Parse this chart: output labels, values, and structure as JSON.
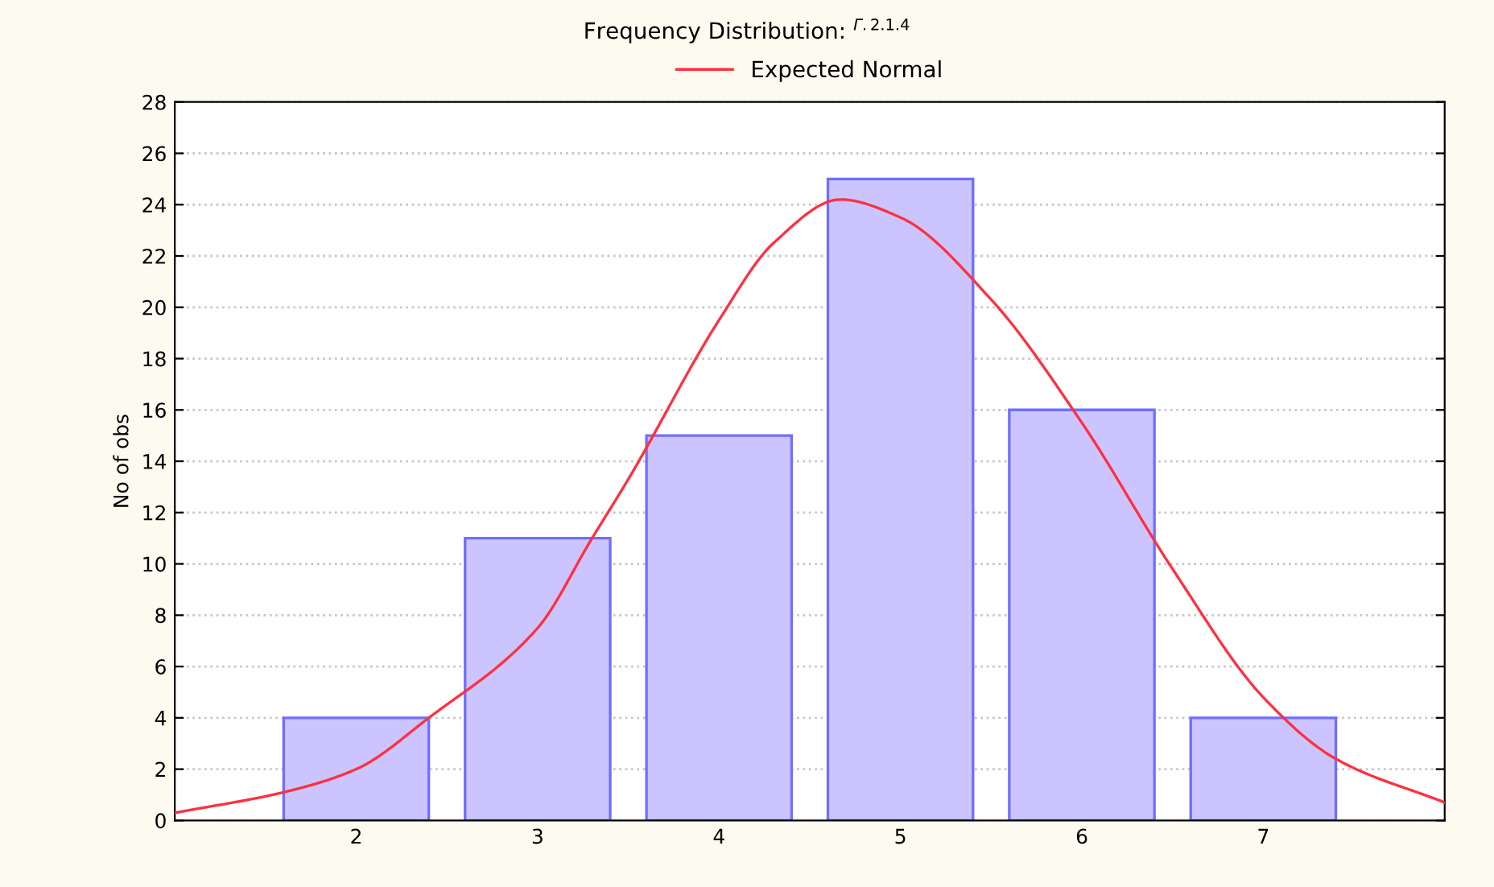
{
  "chart_data": {
    "type": "bar",
    "title": "Frequency Distribution: $^{Г.2.1.4}$",
    "ylabel": "No of obs",
    "xlim": [
      1,
      8
    ],
    "xticks": [
      2,
      3,
      4,
      5,
      6,
      7
    ],
    "ylim": [
      0,
      28
    ],
    "yticks": [
      0,
      2,
      4,
      6,
      8,
      10,
      12,
      14,
      16,
      18,
      20,
      22,
      24,
      26,
      28
    ],
    "grid": "y",
    "legend": "top",
    "series": [
      {
        "color": "#ccc4ff",
        "x": [
          2,
          3,
          4,
          5,
          6,
          7
        ],
        "values": [
          4,
          11,
          15,
          25,
          16,
          4
        ]
      },
      {
        "type": "line",
        "name": "Expected Normal",
        "color": "#ff3040",
        "x": [
          1.0,
          1.6,
          2.0,
          2.4,
          3.0,
          3.3,
          3.5,
          4.0,
          4.3,
          4.67,
          5.0,
          5.5,
          6.0,
          6.5,
          7.0,
          7.4,
          8.0
        ],
        "values": [
          0.3,
          1.1,
          2.0,
          4.0,
          7.5,
          11.0,
          13.3,
          19.5,
          22.5,
          24.2,
          23.5,
          20.3,
          15.5,
          9.8,
          4.8,
          2.4,
          0.7
        ]
      }
    ]
  }
}
